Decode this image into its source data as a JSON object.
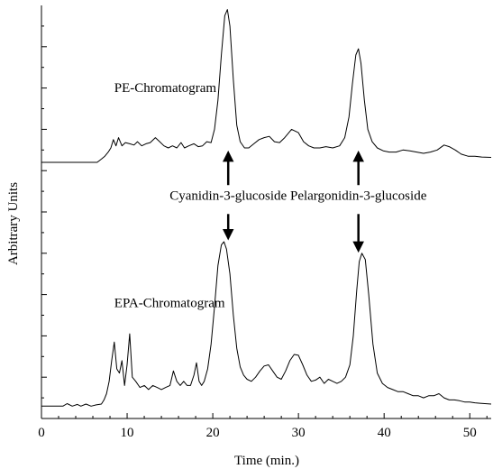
{
  "chart_data": {
    "type": "line",
    "xlabel": "Time (min.)",
    "ylabel": "Arbitrary Units",
    "xlim": [
      0,
      52.5
    ],
    "ylim": [
      0,
      100
    ],
    "x_ticks": [
      0,
      10,
      20,
      30,
      40,
      50
    ],
    "y_tick_labels": "none",
    "grid": false,
    "legend": "none",
    "series": [
      {
        "name": "PE-Chromatogram",
        "x": [
          0,
          6.5,
          7.0,
          7.4,
          7.8,
          8.1,
          8.4,
          8.7,
          9.0,
          9.4,
          9.8,
          10.3,
          10.8,
          11.2,
          11.7,
          12.2,
          12.7,
          13.3,
          13.8,
          14.3,
          14.8,
          15.3,
          15.8,
          16.3,
          16.7,
          17.2,
          17.8,
          18.3,
          18.8,
          19.3,
          19.8,
          20.2,
          20.6,
          21.0,
          21.4,
          21.7,
          22.0,
          22.4,
          22.8,
          23.2,
          23.7,
          24.2,
          24.8,
          25.4,
          26.0,
          26.6,
          27.2,
          27.8,
          28.4,
          29.2,
          30.0,
          30.6,
          31.2,
          31.8,
          32.5,
          33.2,
          34.0,
          34.8,
          35.4,
          35.9,
          36.3,
          36.7,
          37.0,
          37.3,
          37.7,
          38.1,
          38.6,
          39.2,
          39.9,
          40.6,
          41.4,
          42.2,
          43.0,
          43.8,
          44.6,
          45.4,
          46.2,
          47.0,
          47.6,
          48.3,
          49.0,
          49.8,
          50.6,
          51.4,
          52.5
        ],
        "values": [
          62.0,
          62.0,
          62.8,
          63.5,
          64.5,
          65.5,
          67.5,
          66.0,
          68.0,
          66.0,
          66.8,
          66.5,
          66.2,
          67.0,
          66.0,
          66.5,
          66.8,
          68.0,
          67.0,
          66.0,
          65.5,
          66.0,
          65.5,
          66.8,
          65.5,
          66.0,
          66.5,
          65.8,
          66.0,
          67.0,
          66.8,
          70.0,
          77.0,
          88.0,
          97.5,
          99.0,
          95.0,
          82.0,
          71.0,
          67.0,
          65.5,
          65.5,
          66.5,
          67.5,
          68.0,
          68.3,
          67.0,
          66.8,
          68.0,
          70.0,
          69.2,
          67.0,
          66.0,
          65.5,
          65.5,
          65.8,
          65.5,
          66.0,
          68.0,
          73.0,
          81.0,
          88.0,
          89.5,
          86.0,
          77.0,
          70.0,
          67.0,
          65.5,
          64.8,
          64.5,
          64.5,
          65.0,
          64.8,
          64.5,
          64.2,
          64.5,
          65.0,
          66.2,
          65.8,
          65.0,
          64.0,
          63.5,
          63.5,
          63.3,
          63.2
        ]
      },
      {
        "name": "EPA-Chromatogram",
        "x": [
          0,
          2.5,
          3.0,
          3.6,
          4.2,
          4.6,
          5.2,
          5.8,
          6.4,
          7.0,
          7.3,
          7.6,
          7.9,
          8.2,
          8.5,
          8.8,
          9.1,
          9.4,
          9.7,
          10.0,
          10.3,
          10.6,
          11.0,
          11.5,
          12.0,
          12.5,
          13.0,
          13.5,
          14.0,
          14.5,
          15.0,
          15.4,
          15.8,
          16.2,
          16.6,
          17.0,
          17.4,
          17.8,
          18.1,
          18.4,
          18.7,
          19.0,
          19.4,
          19.8,
          20.2,
          20.6,
          21.0,
          21.3,
          21.6,
          22.0,
          22.4,
          22.8,
          23.2,
          23.6,
          24.0,
          24.5,
          25.0,
          25.5,
          26.0,
          26.5,
          27.0,
          27.5,
          28.0,
          28.5,
          29.0,
          29.5,
          30.0,
          30.5,
          31.0,
          31.5,
          32.0,
          32.5,
          33.0,
          33.5,
          34.0,
          34.5,
          35.0,
          35.5,
          36.0,
          36.4,
          36.8,
          37.1,
          37.4,
          37.8,
          38.2,
          38.7,
          39.2,
          39.8,
          40.4,
          41.0,
          41.6,
          42.2,
          42.8,
          43.4,
          44.0,
          44.6,
          45.2,
          45.8,
          46.4,
          47.0,
          47.6,
          48.2,
          48.8,
          49.4,
          50.0,
          50.6,
          51.2,
          52.5
        ],
        "values": [
          3.0,
          3.0,
          3.6,
          3.0,
          3.4,
          3.0,
          3.5,
          3.0,
          3.3,
          3.5,
          4.5,
          6.0,
          9.0,
          14.0,
          18.5,
          12.0,
          11.0,
          14.0,
          8.0,
          13.0,
          20.5,
          10.0,
          9.0,
          7.5,
          8.0,
          7.0,
          8.0,
          7.5,
          7.0,
          7.5,
          8.0,
          11.5,
          9.0,
          8.0,
          9.0,
          8.0,
          8.0,
          10.5,
          13.5,
          9.0,
          8.0,
          9.0,
          12.0,
          18.0,
          27.0,
          37.0,
          42.0,
          42.8,
          41.0,
          35.0,
          25.0,
          17.0,
          12.5,
          10.5,
          9.5,
          9.0,
          10.0,
          11.5,
          12.7,
          13.0,
          11.5,
          10.0,
          9.5,
          11.5,
          14.0,
          15.5,
          15.3,
          13.0,
          10.5,
          9.0,
          9.3,
          10.0,
          8.5,
          9.5,
          9.0,
          8.5,
          9.0,
          10.0,
          13.0,
          20.0,
          31.0,
          38.0,
          40.0,
          38.5,
          30.0,
          18.0,
          11.0,
          8.5,
          7.5,
          7.0,
          6.5,
          6.5,
          6.0,
          5.5,
          5.5,
          5.0,
          5.5,
          5.5,
          6.0,
          5.0,
          4.5,
          4.5,
          4.3,
          4.0,
          4.0,
          3.8,
          3.7,
          3.5
        ]
      }
    ],
    "annotations": [
      {
        "text": "PE-Chromatogram",
        "x": 8.5,
        "y": 79
      },
      {
        "text": "EPA-Chromatogram",
        "x": 8.5,
        "y": 27
      },
      {
        "text": "Cyanidin-3-glucoside",
        "x": 21.8,
        "y": 53,
        "arrow_up_to": 63.5,
        "arrow_down_to": 44.5
      },
      {
        "text": "Pelargonidin-3-glucoside",
        "x": 37.0,
        "y": 53,
        "arrow_up_to": 63.5,
        "arrow_down_to": 41.5
      }
    ]
  }
}
